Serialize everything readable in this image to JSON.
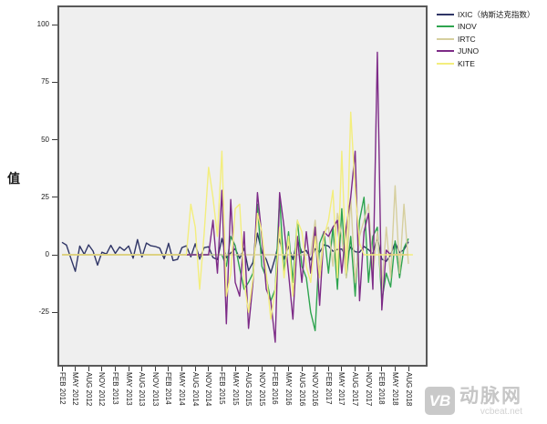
{
  "watermark": {
    "logo_text": "VB",
    "brand_text": "动脉网",
    "domain_text": "vcbeat.net"
  },
  "colors": {
    "plot_background": "#efefef",
    "plot_border": "#595959",
    "page_background": "#ffffff",
    "tick_color": "#3a3a3a",
    "watermark_gray": "#c9c9c9"
  },
  "chart_data": {
    "type": "line",
    "title": "",
    "xlabel": "",
    "ylabel": "值",
    "ylim": [
      -47,
      108
    ],
    "grid": false,
    "legend_position": "top-right-outside",
    "y_ticks": [
      100,
      75,
      50,
      25,
      0,
      -25
    ],
    "x_note": "monthly values, FEB 2012 through AUG 2018 (79 points); tick labels every 3 months; values are monthly change (%)",
    "x_tick_labels": [
      "FEB 2012",
      "MAY 2012",
      "AUG 2012",
      "NOV 2012",
      "FEB 2013",
      "MAY 2013",
      "AUG 2013",
      "NOV 2013",
      "FEB 2014",
      "MAY 2014",
      "AUG 2014",
      "NOV 2014",
      "FEB 2015",
      "MAY 2015",
      "AUG 2015",
      "NOV 2015",
      "FEB 2016",
      "MAY 2016",
      "AUG 2016",
      "NOV 2016",
      "FEB 2017",
      "MAY 2017",
      "AUG 2017",
      "NOV 2017",
      "FEB 2018",
      "MAY 2018",
      "AUG 2018"
    ],
    "series": [
      {
        "id": "IXIC",
        "name": "IXIC（纳斯达克指数）",
        "color": "#2f3566",
        "values": [
          5.4,
          4.2,
          -1.5,
          -7.2,
          3.8,
          0.2,
          4.3,
          1.6,
          -4.5,
          1.1,
          0.3,
          4.1,
          0.6,
          3.4,
          1.9,
          3.8,
          -1.5,
          6.6,
          -1.0,
          5.1,
          3.9,
          3.6,
          2.9,
          -1.7,
          5.0,
          -2.5,
          -2.0,
          3.1,
          3.9,
          -0.9,
          4.8,
          -1.9,
          3.1,
          3.5,
          -1.2,
          -2.1,
          7.1,
          -1.3,
          0.8,
          2.6,
          -1.6,
          2.8,
          -6.9,
          -3.3,
          9.4,
          1.1,
          -2.0,
          -7.9,
          -1.2,
          6.8,
          -1.9,
          3.6,
          -2.1,
          6.6,
          1.0,
          1.9,
          -2.3,
          2.6,
          1.1,
          4.3,
          3.8,
          1.5,
          2.3,
          2.5,
          -0.9,
          3.4,
          1.3,
          1.1,
          3.6,
          2.2,
          0.4,
          7.4,
          -1.9,
          -2.9,
          0.0,
          5.3,
          0.9,
          2.2,
          5.7
        ]
      },
      {
        "id": "INOV",
        "name": "INOV",
        "color": "#2ea44f",
        "values": [
          0,
          0,
          0,
          0,
          0,
          0,
          0,
          0,
          0,
          0,
          0,
          0,
          0,
          0,
          0,
          0,
          0,
          0,
          0,
          0,
          0,
          0,
          0,
          0,
          0,
          0,
          0,
          0,
          0,
          0,
          0,
          0,
          0,
          0,
          0,
          0,
          0,
          -5,
          8,
          4,
          -6,
          -15,
          -12,
          -8,
          22,
          -5,
          -10,
          -20,
          -15,
          25,
          -8,
          10,
          -12,
          15,
          -5,
          -10,
          -25,
          -33,
          5,
          10,
          -8,
          12,
          -15,
          20,
          -10,
          8,
          -18,
          15,
          25,
          -12,
          8,
          12,
          -20,
          -8,
          -14,
          6,
          -10,
          3,
          7
        ]
      },
      {
        "id": "IRTC",
        "name": "IRTC",
        "color": "#d6cf9e",
        "values": [
          0,
          0,
          0,
          0,
          0,
          0,
          0,
          0,
          0,
          0,
          0,
          0,
          0,
          0,
          0,
          0,
          0,
          0,
          0,
          0,
          0,
          0,
          0,
          0,
          0,
          0,
          0,
          0,
          0,
          0,
          0,
          0,
          0,
          0,
          0,
          0,
          0,
          0,
          0,
          0,
          0,
          0,
          0,
          0,
          0,
          0,
          0,
          0,
          0,
          0,
          0,
          0,
          0,
          0,
          0,
          0,
          0,
          15,
          -8,
          10,
          12,
          -5,
          18,
          8,
          -10,
          25,
          -12,
          8,
          15,
          22,
          -8,
          10,
          -15,
          12,
          -10,
          30,
          -8,
          22,
          -4
        ]
      },
      {
        "id": "JUNO",
        "name": "JUNO",
        "color": "#7d2b87",
        "values": [
          0,
          0,
          0,
          0,
          0,
          0,
          0,
          0,
          0,
          0,
          0,
          0,
          0,
          0,
          0,
          0,
          0,
          0,
          0,
          0,
          0,
          0,
          0,
          0,
          0,
          0,
          0,
          0,
          0,
          0,
          0,
          0,
          0,
          0,
          15,
          -8,
          28,
          -30,
          24,
          -12,
          -18,
          10,
          -32,
          -12,
          27,
          8,
          -15,
          -20,
          -38,
          27,
          12,
          -8,
          -28,
          8,
          -12,
          10,
          -8,
          12,
          -22,
          10,
          8,
          12,
          15,
          -8,
          12,
          25,
          45,
          -20,
          10,
          18,
          -15,
          88,
          -24,
          2,
          0,
          0,
          0,
          0,
          0
        ]
      },
      {
        "id": "KITE",
        "name": "KITE",
        "color": "#f3ee7d",
        "values": [
          0,
          0,
          0,
          0,
          0,
          0,
          0,
          0,
          0,
          0,
          0,
          0,
          0,
          0,
          0,
          0,
          0,
          0,
          0,
          0,
          0,
          0,
          0,
          0,
          0,
          0,
          0,
          0,
          0,
          22,
          12,
          -15,
          9,
          38,
          25,
          8,
          45,
          -18,
          -8,
          20,
          22,
          -12,
          -25,
          -10,
          18,
          10,
          -8,
          -28,
          -15,
          12,
          -10,
          8,
          -18,
          15,
          10,
          -5,
          -12,
          8,
          -10,
          8,
          15,
          28,
          -10,
          45,
          -8,
          62,
          28,
          5,
          0,
          0,
          0,
          0,
          0,
          0,
          0,
          0,
          0,
          0,
          0,
          0
        ]
      }
    ]
  }
}
